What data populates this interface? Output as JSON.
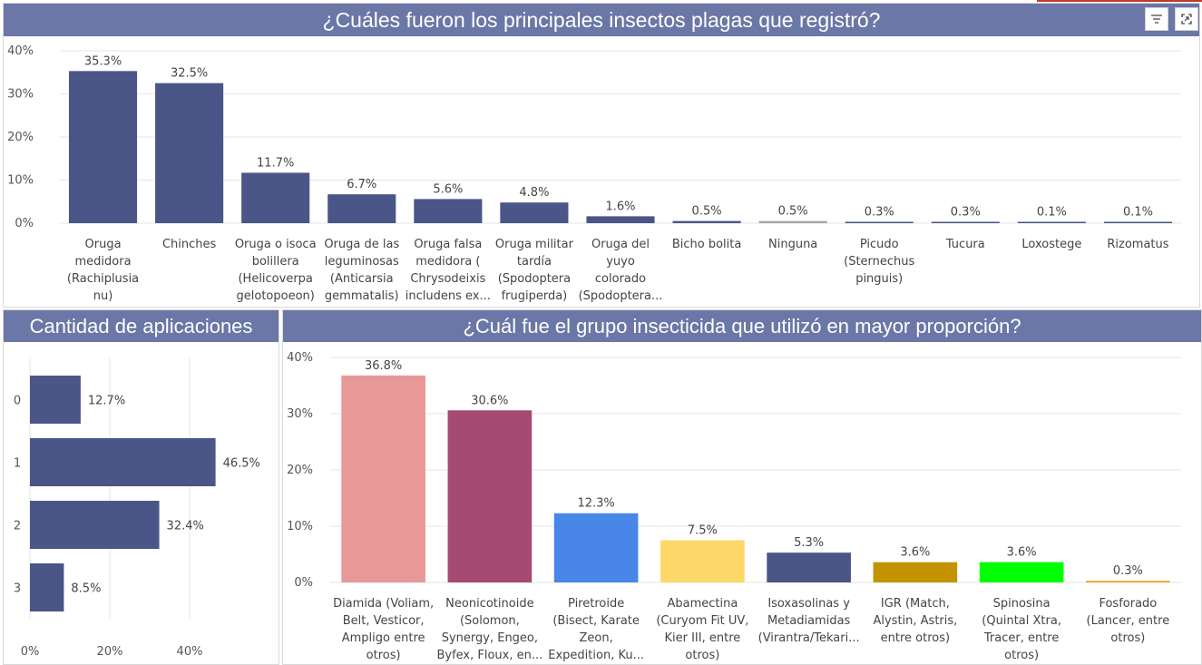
{
  "colors": {
    "title_bg": "#6b77a6",
    "bar_primary": "#4a5588",
    "gridline": "#e6e6e6"
  },
  "icons": {
    "filter": "filter-icon",
    "focus": "expand-icon"
  },
  "top_chart": {
    "title": "¿Cuáles fueron los principales insectos plagas que registró?",
    "chart_data": {
      "type": "bar",
      "ylim": [
        0,
        40
      ],
      "yticks": [
        "0%",
        "10%",
        "20%",
        "30%",
        "40%"
      ],
      "categories": [
        [
          "Oruga",
          "medidora",
          "(Rachiplusia",
          "nu)"
        ],
        [
          "Chinches"
        ],
        [
          "Oruga o isoca",
          "bolillera",
          "(Helicoverpa",
          "gelotopoeon)"
        ],
        [
          "Oruga de las",
          "leguminosas",
          "(Anticarsia",
          "gemmatalis)"
        ],
        [
          "Oruga falsa",
          "medidora (",
          "Chrysodeixis",
          "includens ex..."
        ],
        [
          "Oruga militar",
          "tardía",
          "(Spodoptera",
          "frugiperda)"
        ],
        [
          "Oruga del",
          "yuyo",
          "colorado",
          "(Spodoptera..."
        ],
        [
          "Bicho bolita"
        ],
        [
          "Ninguna"
        ],
        [
          "Picudo",
          "(Sternechus",
          "pinguis)"
        ],
        [
          "Tucura"
        ],
        [
          "Loxostege"
        ],
        [
          "Rizomatus"
        ]
      ],
      "values": [
        35.3,
        32.5,
        11.7,
        6.7,
        5.6,
        4.8,
        1.6,
        0.5,
        0.5,
        0.3,
        0.3,
        0.1,
        0.1
      ],
      "labels": [
        "35.3%",
        "32.5%",
        "11.7%",
        "6.7%",
        "5.6%",
        "4.8%",
        "1.6%",
        "0.5%",
        "0.5%",
        "0.3%",
        "0.3%",
        "0.1%",
        "0.1%"
      ],
      "colors": [
        "#4a5588",
        "#4a5588",
        "#4a5588",
        "#4a5588",
        "#4a5588",
        "#4a5588",
        "#4a5588",
        "#4a5588",
        "#a6a6a6",
        "#4a5588",
        "#4a5588",
        "#4a5588",
        "#4a5588"
      ]
    }
  },
  "left_chart": {
    "title": "Cantidad de aplicaciones",
    "chart_data": {
      "type": "bar",
      "orientation": "horizontal",
      "xlim": [
        0,
        60
      ],
      "xticks": [
        "0%",
        "20%",
        "40%"
      ],
      "categories": [
        "0",
        "1",
        "2",
        "3"
      ],
      "values": [
        12.7,
        46.5,
        32.4,
        8.5
      ],
      "labels": [
        "12.7%",
        "46.5%",
        "32.4%",
        "8.5%"
      ]
    }
  },
  "right_chart": {
    "title": "¿Cuál fue el grupo insecticida que utilizó en mayor proporción?",
    "chart_data": {
      "type": "bar",
      "ylim": [
        0,
        40
      ],
      "yticks": [
        "0%",
        "10%",
        "20%",
        "30%",
        "40%"
      ],
      "categories": [
        [
          "Diamida (Voliam,",
          "Belt, Vesticor,",
          "Ampligo entre",
          "otros)"
        ],
        [
          "Neonicotinoide",
          "(Solomon,",
          "Synergy, Engeo,",
          "Byfex, Floux, en..."
        ],
        [
          "Piretroide",
          "(Bisect, Karate",
          "Zeon,",
          "Expedition, Ku..."
        ],
        [
          "Abamectina",
          "(Curyom Fit UV,",
          "Kier III, entre",
          "otros)"
        ],
        [
          "Isoxasolinas y",
          "Metadiamidas",
          "(Virantra/Tekari..."
        ],
        [
          "IGR (Match,",
          "Alystin, Astris,",
          "entre otros)"
        ],
        [
          "Spinosina",
          "(Quintal Xtra,",
          "Tracer, entre",
          "otros)"
        ],
        [
          "Fosforado",
          "(Lancer, entre",
          "otros)"
        ]
      ],
      "values": [
        36.8,
        30.6,
        12.3,
        7.5,
        5.3,
        3.6,
        3.6,
        0.3
      ],
      "labels": [
        "36.8%",
        "30.6%",
        "12.3%",
        "7.5%",
        "5.3%",
        "3.6%",
        "3.6%",
        "0.3%"
      ],
      "colors": [
        "#e89896",
        "#a54a72",
        "#4886e8",
        "#fdd868",
        "#4a5588",
        "#c39400",
        "#00ff00",
        "#f5a623"
      ]
    }
  }
}
